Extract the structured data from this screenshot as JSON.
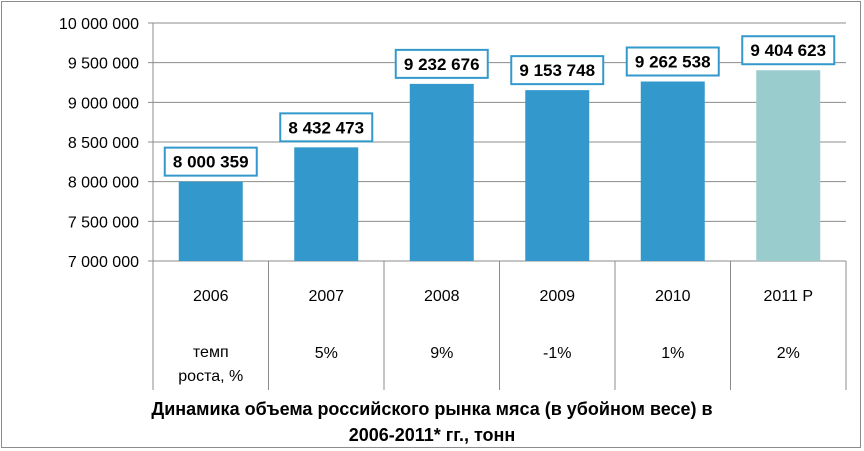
{
  "chart_data": {
    "type": "bar",
    "title_lines": [
      "Динамика объема российского рынка мяса (в убойном весе) в",
      "2006-2011* гг., тонн"
    ],
    "categories": [
      "2006",
      "2007",
      "2008",
      "2009",
      "2010",
      "2011 Р"
    ],
    "values": [
      8000359,
      8432473,
      9232676,
      9153748,
      9262538,
      9404623
    ],
    "value_labels": [
      "8 000 359",
      "8 432 473",
      "9 232 676",
      "9 153 748",
      "9 262 538",
      "9 404 623"
    ],
    "growth_row_label": "темп роста, %",
    "growth_row_label_lines": [
      "темп",
      "роста, %"
    ],
    "growth_rates": [
      "",
      "5%",
      "9%",
      "-1%",
      "1%",
      "2%"
    ],
    "ylim": [
      7000000,
      10000000
    ],
    "yticks": [
      7000000,
      7500000,
      8000000,
      8500000,
      9000000,
      9500000,
      10000000
    ],
    "ytick_labels": [
      "7 000 000",
      "7 500 000",
      "8 000 000",
      "8 500 000",
      "9 000 000",
      "9 500 000",
      "10 000 000"
    ],
    "grid": true,
    "legend": "none",
    "colors": {
      "bar": "#3399cc",
      "forecast_bar": "#99cccc",
      "label_border": "#3399cc",
      "grid": "#8c8c8c"
    }
  }
}
